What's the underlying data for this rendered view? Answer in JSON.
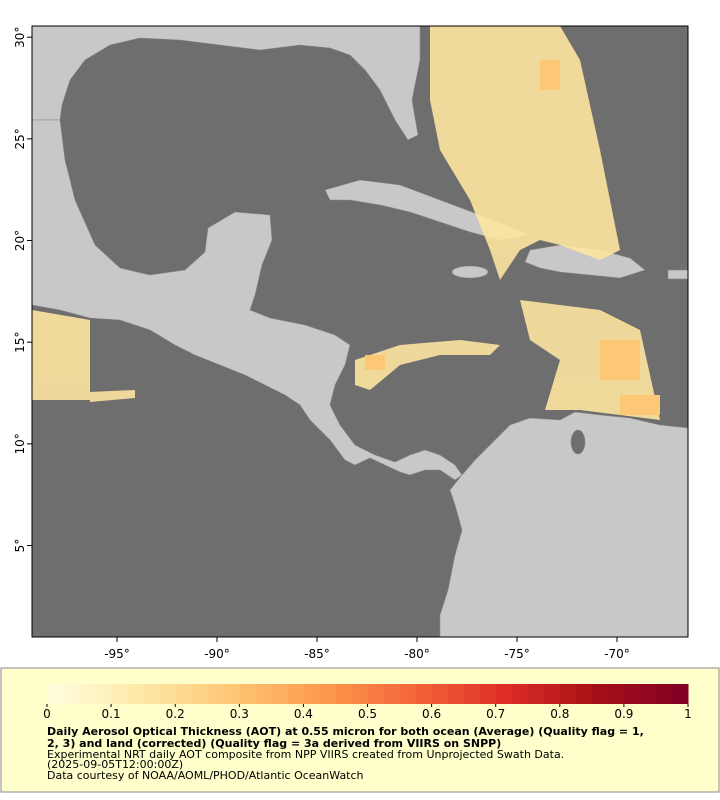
{
  "map": {
    "xlim": [
      -99.25,
      -66.45
    ],
    "ylim": [
      0.5,
      30.55
    ],
    "xticks": [
      {
        "value": -95,
        "label": "-95°"
      },
      {
        "value": -90,
        "label": "-90°"
      },
      {
        "value": -85,
        "label": "-85°"
      },
      {
        "value": -80,
        "label": "-80°"
      },
      {
        "value": -75,
        "label": "-75°"
      },
      {
        "value": -70,
        "label": "-70°"
      }
    ],
    "yticks": [
      {
        "value": 5,
        "label": "5°"
      },
      {
        "value": 10,
        "label": "10°"
      },
      {
        "value": 15,
        "label": "15°"
      },
      {
        "value": 20,
        "label": "20°"
      },
      {
        "value": 25,
        "label": "25°"
      },
      {
        "value": 30,
        "label": "30°"
      }
    ]
  },
  "colorbar": {
    "range": [
      0,
      1
    ],
    "ticks": [
      0,
      0.1,
      0.2,
      0.3,
      0.4,
      0.5,
      0.6,
      0.7,
      0.8,
      0.9,
      1
    ],
    "colors": [
      "#ffffe0",
      "#fee9a8",
      "#fdc875",
      "#fc9a4e",
      "#f4663a",
      "#de2d26",
      "#a50f15",
      "#800026"
    ]
  },
  "caption": {
    "title_lines": [
      "Daily Aerosol Optical Thickness (AOT) at 0.55 micron for both ocean (Average) (Quality flag = 1,",
      "2, 3) and land (corrected) (Quality flag = 3a derived from VIIRS on SNPP)"
    ],
    "lines": [
      "Experimental NRT daily AOT composite from NPP VIIRS created from Unprojected Swath Data.",
      "(2025-09-05T12:00:00Z)",
      "Data courtesy of NOAA/AOML/PHOD/Atlantic OceanWatch"
    ]
  }
}
